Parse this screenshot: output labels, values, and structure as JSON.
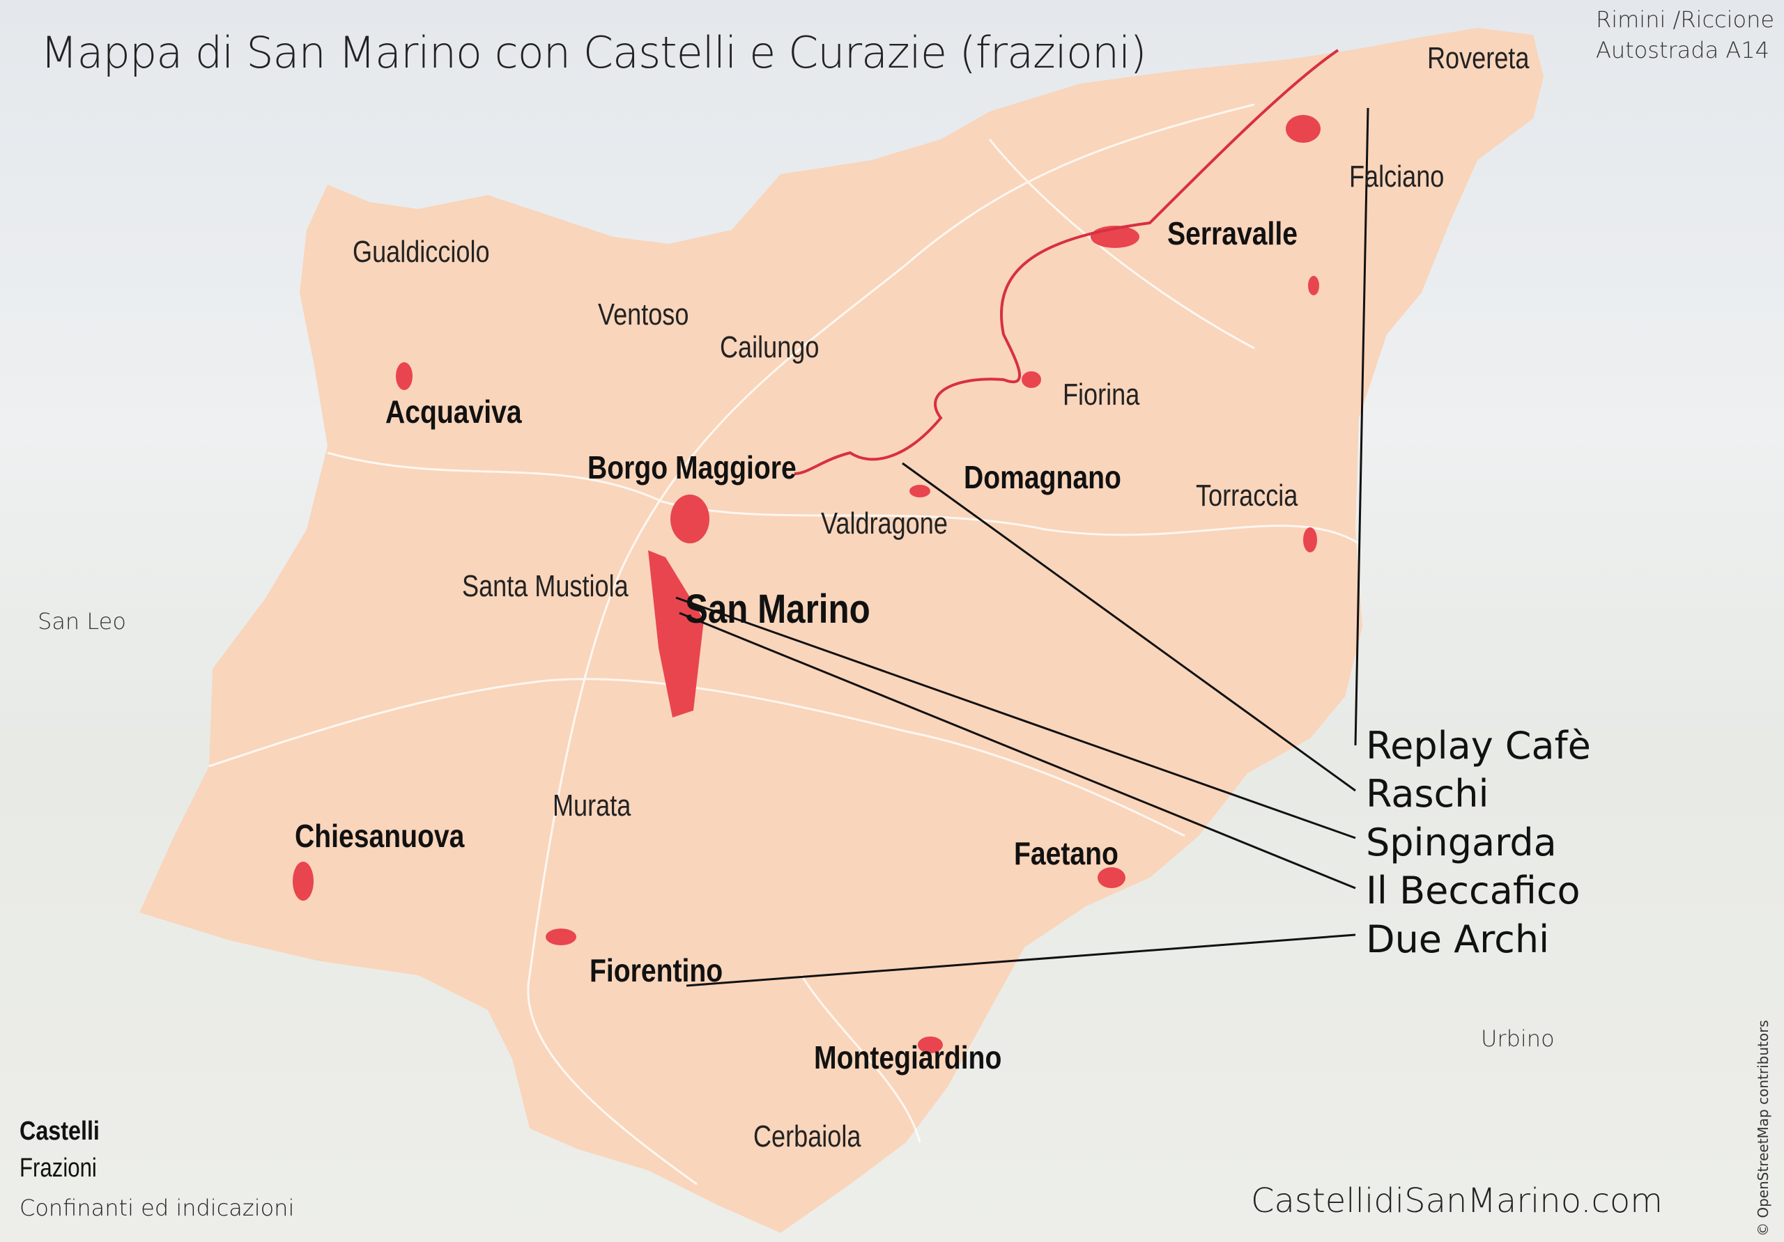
{
  "title": "Mappa di San Marino con Castelli e Curazie (frazioni)",
  "colors": {
    "territory": "#f9d5bb",
    "urban": "#e8454f",
    "roads": "#ffffff",
    "leader_lines": "#111111"
  },
  "castelli": [
    {
      "name": "Serravalle"
    },
    {
      "name": "Acquaviva"
    },
    {
      "name": "Borgo Maggiore"
    },
    {
      "name": "Domagnano"
    },
    {
      "name": "San Marino"
    },
    {
      "name": "Chiesanuova"
    },
    {
      "name": "Faetano"
    },
    {
      "name": "Fiorentino"
    },
    {
      "name": "Montegiardino"
    }
  ],
  "frazioni": [
    {
      "name": "Rovereta"
    },
    {
      "name": "Falciano"
    },
    {
      "name": "Gualdicciolo"
    },
    {
      "name": "Ventoso"
    },
    {
      "name": "Cailungo"
    },
    {
      "name": "Fiorina"
    },
    {
      "name": "Torraccia"
    },
    {
      "name": "Valdragone"
    },
    {
      "name": "Santa Mustiola"
    },
    {
      "name": "Murata"
    },
    {
      "name": "Cerbaiola"
    }
  ],
  "neighbors": {
    "rimini_line1": "Rimini /Riccione",
    "rimini_line2": "Autostrada A14",
    "san_leo": "San Leo",
    "urbino": "Urbino"
  },
  "places": [
    {
      "name": "Replay Cafè"
    },
    {
      "name": "Raschi"
    },
    {
      "name": "Spingarda"
    },
    {
      "name": "Il Beccafico"
    },
    {
      "name": "Due Archi"
    }
  ],
  "legend": {
    "castelli": "Castelli",
    "frazioni": "Frazioni",
    "confinanti": "Confinanti ed indicazioni"
  },
  "footer": "CastellidiSanMarino.com",
  "attribution": "© OpenStreetMap contributors"
}
